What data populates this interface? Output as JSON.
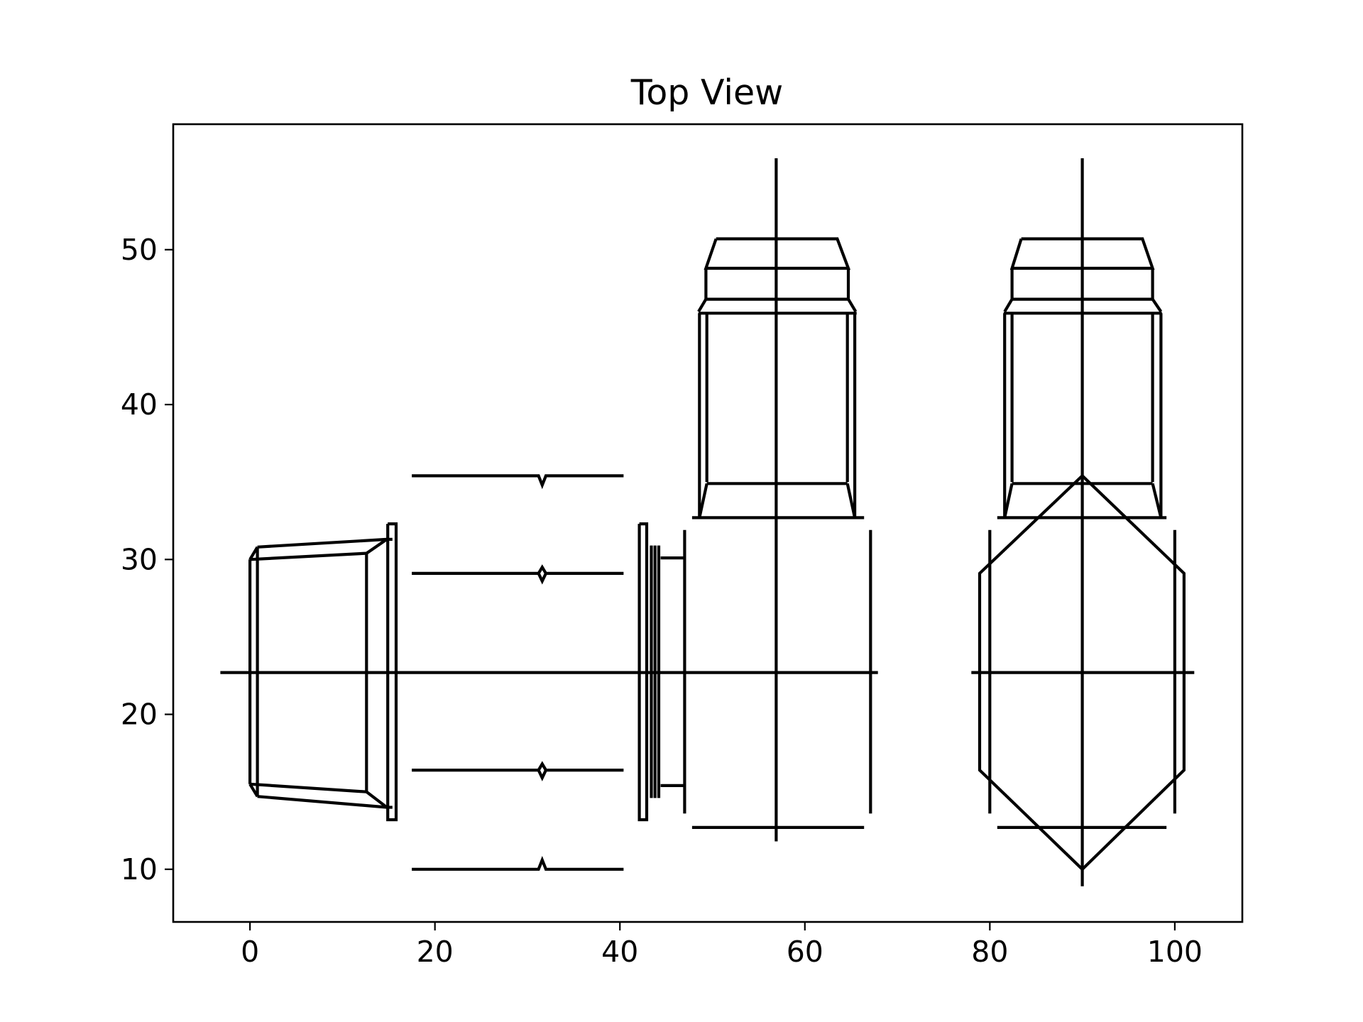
{
  "title": "Top View",
  "axes": {
    "xlim": [
      -8.3,
      107.3
    ],
    "ylim": [
      6.6,
      58.1
    ],
    "x_ticks": [
      0,
      20,
      40,
      60,
      80,
      100
    ],
    "y_ticks": [
      10,
      20,
      30,
      40,
      50
    ],
    "grid": false
  },
  "drawing": {
    "color": "#000000",
    "components": [
      {
        "id": "tapered-box",
        "polylines": [
          [
            [
              0,
              30
            ],
            [
              0,
              15.5
            ]
          ],
          [
            [
              0.8,
              30.8
            ],
            [
              0.8,
              14.7
            ]
          ],
          [
            [
              12.6,
              30.4
            ],
            [
              12.6,
              15
            ]
          ],
          [
            [
              0,
              30
            ],
            [
              12.6,
              30.4
            ]
          ],
          [
            [
              0.8,
              30.8
            ],
            [
              14.8,
              31.3
            ]
          ],
          [
            [
              0,
              15.5
            ],
            [
              12.6,
              15
            ]
          ],
          [
            [
              0.8,
              14.7
            ],
            [
              14.8,
              14
            ]
          ],
          [
            [
              0,
              30
            ],
            [
              0.8,
              30.8
            ]
          ],
          [
            [
              0,
              15.5
            ],
            [
              0.8,
              14.7
            ]
          ],
          [
            [
              12.6,
              30.4
            ],
            [
              14.8,
              31.3
            ]
          ],
          [
            [
              12.6,
              15
            ],
            [
              14.8,
              14
            ]
          ],
          [
            [
              14.8,
              31.3
            ],
            [
              15.4,
              31.3
            ]
          ],
          [
            [
              14.8,
              14
            ],
            [
              15.4,
              14
            ]
          ],
          [
            [
              14.9,
              32.3
            ],
            [
              15.8,
              32.3
            ],
            [
              15.8,
              13.2
            ],
            [
              14.9,
              13.2
            ],
            [
              14.9,
              32.3
            ]
          ]
        ]
      },
      {
        "id": "rods",
        "polylines": [
          [
            [
              17.5,
              35.4
            ],
            [
              31.2,
              35.4
            ],
            [
              31.6,
              34.8
            ],
            [
              32,
              35.4
            ],
            [
              40.4,
              35.4
            ]
          ],
          [
            [
              17.5,
              29.1
            ],
            [
              31.2,
              29.1
            ],
            [
              31.6,
              29.5
            ],
            [
              32,
              29.1
            ],
            [
              40.4,
              29.1
            ]
          ],
          [
            [
              31.2,
              29.1
            ],
            [
              31.6,
              28.6
            ],
            [
              32,
              29.1
            ]
          ],
          [
            [
              17.5,
              16.4
            ],
            [
              31.2,
              16.4
            ],
            [
              31.6,
              16.8
            ],
            [
              32,
              16.4
            ],
            [
              40.4,
              16.4
            ]
          ],
          [
            [
              31.2,
              16.4
            ],
            [
              31.6,
              15.9
            ],
            [
              32,
              16.4
            ]
          ],
          [
            [
              17.5,
              10
            ],
            [
              31.2,
              10
            ],
            [
              31.6,
              10.6
            ],
            [
              32,
              10
            ],
            [
              40.4,
              10
            ]
          ]
        ]
      },
      {
        "id": "flange-plates",
        "polylines": [
          [
            [
              42.1,
              32.3
            ],
            [
              42.9,
              32.3
            ],
            [
              42.9,
              13.2
            ],
            [
              42.1,
              13.2
            ],
            [
              42.1,
              32.3
            ]
          ],
          [
            [
              43.4,
              30.9
            ],
            [
              43.4,
              14.6
            ]
          ],
          [
            [
              43.8,
              30.9
            ],
            [
              43.8,
              14.6
            ]
          ],
          [
            [
              44.2,
              30.9
            ],
            [
              44.2,
              14.6
            ]
          ],
          [
            [
              44.4,
              30.1
            ],
            [
              47,
              30.1
            ]
          ],
          [
            [
              44.4,
              15.4
            ],
            [
              47,
              15.4
            ]
          ],
          [
            [
              47,
              31.9
            ],
            [
              47,
              13.6
            ]
          ]
        ]
      },
      {
        "id": "housing-left",
        "polylines": [
          [
            [
              50.4,
              50.7
            ],
            [
              63.5,
              50.7
            ],
            [
              64.7,
              48.8
            ],
            [
              49.3,
              48.8
            ],
            [
              50.4,
              50.7
            ]
          ],
          [
            [
              49.3,
              48.8
            ],
            [
              49.3,
              46.8
            ]
          ],
          [
            [
              64.7,
              48.8
            ],
            [
              64.7,
              46.8
            ]
          ],
          [
            [
              49.3,
              46.8
            ],
            [
              64.7,
              46.8
            ]
          ],
          [
            [
              49.3,
              46.8
            ],
            [
              48.5,
              46
            ]
          ],
          [
            [
              64.7,
              46.8
            ],
            [
              65.5,
              46
            ]
          ],
          [
            [
              48.5,
              45.9
            ],
            [
              65.6,
              45.9
            ]
          ],
          [
            [
              48.6,
              45.9
            ],
            [
              48.6,
              32.7
            ]
          ],
          [
            [
              49.4,
              45.9
            ],
            [
              49.4,
              35
            ]
          ],
          [
            [
              64.6,
              45.9
            ],
            [
              64.6,
              35
            ]
          ],
          [
            [
              65.4,
              45.9
            ],
            [
              65.4,
              32.7
            ]
          ],
          [
            [
              49.4,
              34.9
            ],
            [
              64.6,
              34.9
            ]
          ],
          [
            [
              49.4,
              34.9
            ],
            [
              48.6,
              32.7
            ]
          ],
          [
            [
              64.6,
              34.9
            ],
            [
              65.4,
              32.7
            ]
          ],
          [
            [
              47.8,
              32.7
            ],
            [
              66.4,
              32.7
            ]
          ],
          [
            [
              47.8,
              12.7
            ],
            [
              66.4,
              12.7
            ]
          ],
          [
            [
              67.1,
              31.9
            ],
            [
              67.1,
              13.6
            ]
          ]
        ]
      },
      {
        "id": "housing-right",
        "polylines": [
          [
            [
              83.4,
              50.7
            ],
            [
              96.5,
              50.7
            ],
            [
              97.6,
              48.8
            ],
            [
              82.4,
              48.8
            ],
            [
              83.4,
              50.7
            ]
          ],
          [
            [
              82.4,
              48.8
            ],
            [
              82.4,
              46.8
            ]
          ],
          [
            [
              97.6,
              48.8
            ],
            [
              97.6,
              46.8
            ]
          ],
          [
            [
              82.4,
              46.8
            ],
            [
              97.6,
              46.8
            ]
          ],
          [
            [
              82.4,
              46.8
            ],
            [
              81.6,
              46
            ]
          ],
          [
            [
              97.6,
              46.8
            ],
            [
              98.5,
              46
            ]
          ],
          [
            [
              81.5,
              45.9
            ],
            [
              98.6,
              45.9
            ]
          ],
          [
            [
              81.6,
              45.9
            ],
            [
              81.6,
              32.7
            ]
          ],
          [
            [
              82.4,
              45.9
            ],
            [
              82.4,
              35
            ]
          ],
          [
            [
              97.6,
              45.9
            ],
            [
              97.6,
              35
            ]
          ],
          [
            [
              98.5,
              45.9
            ],
            [
              98.5,
              32.7
            ]
          ],
          [
            [
              82.4,
              34.9
            ],
            [
              97.6,
              34.9
            ]
          ],
          [
            [
              82.4,
              34.9
            ],
            [
              81.6,
              32.7
            ]
          ],
          [
            [
              97.6,
              34.9
            ],
            [
              98.5,
              32.7
            ]
          ],
          [
            [
              80.8,
              32.7
            ],
            [
              99.1,
              32.7
            ]
          ],
          [
            [
              80.8,
              12.7
            ],
            [
              99.1,
              12.7
            ]
          ],
          [
            [
              80,
              31.9
            ],
            [
              80,
              13.6
            ]
          ],
          [
            [
              100,
              31.9
            ],
            [
              100,
              13.6
            ]
          ]
        ]
      },
      {
        "id": "hexagon",
        "polylines": [
          [
            [
              90,
              35.4
            ],
            [
              101,
              29.1
            ],
            [
              101,
              16.4
            ],
            [
              90,
              10
            ],
            [
              78.9,
              16.4
            ],
            [
              78.9,
              29.1
            ],
            [
              90,
              35.4
            ]
          ]
        ]
      },
      {
        "id": "centerlines",
        "polylines": [
          [
            [
              -3.2,
              22.7
            ],
            [
              67.9,
              22.7
            ]
          ],
          [
            [
              78,
              22.7
            ],
            [
              102.1,
              22.7
            ]
          ],
          [
            [
              56.9,
              55.9
            ],
            [
              56.9,
              11.8
            ]
          ],
          [
            [
              90,
              55.9
            ],
            [
              90,
              8.9
            ]
          ]
        ]
      }
    ]
  }
}
